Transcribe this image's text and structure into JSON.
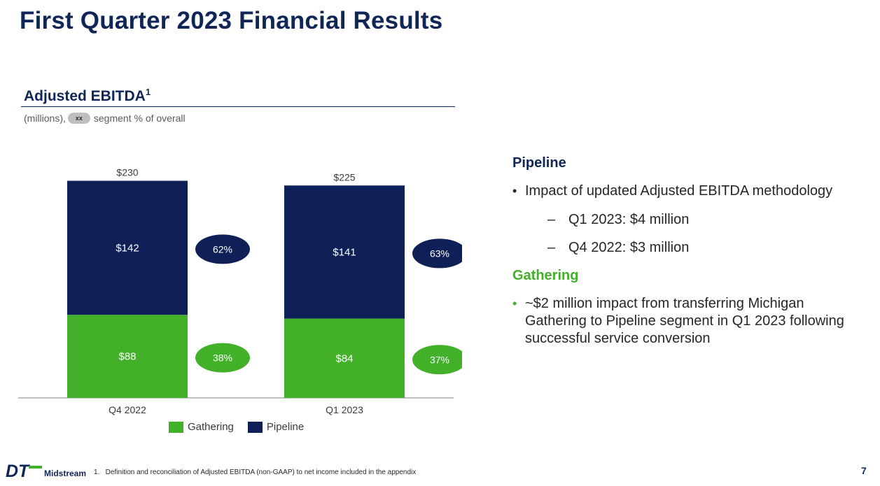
{
  "page": {
    "title": "First Quarter 2023 Financial Results",
    "page_number": "7",
    "footnote": "1.   Definition and reconciliation of Adjusted EBITDA (non-GAAP) to net income included in the appendix",
    "logo_text": "Midstream",
    "logo_letters": "DT"
  },
  "chart_header": {
    "title": "Adjusted EBITDA",
    "title_sup": "1",
    "subtitle_prefix": "(millions),",
    "subtitle_pill": "xx",
    "subtitle_suffix": "segment % of overall"
  },
  "chart_data": {
    "type": "bar",
    "stacked": true,
    "categories": [
      "Q4 2022",
      "Q1 2023"
    ],
    "series": [
      {
        "name": "Gathering",
        "values": [
          88,
          84
        ],
        "labels": [
          "$88",
          "$84"
        ],
        "share_labels": [
          "38%",
          "37%"
        ],
        "color": "#43b02a"
      },
      {
        "name": "Pipeline",
        "values": [
          142,
          141
        ],
        "labels": [
          "$142",
          "$141"
        ],
        "share_labels": [
          "62%",
          "63%"
        ],
        "color": "#0f2058"
      }
    ],
    "totals": [
      230,
      225
    ],
    "total_labels": [
      "$230",
      "$225"
    ],
    "ylim": [
      0,
      240
    ],
    "legend_position": "bottom",
    "grid": false
  },
  "legend": [
    {
      "label": "Gathering",
      "color": "#43b02a"
    },
    {
      "label": "Pipeline",
      "color": "#0f2058"
    }
  ],
  "right_panel": {
    "pipeline": {
      "heading": "Pipeline",
      "color": "#0f2657",
      "bullet": "Impact of updated Adjusted EBITDA methodology",
      "sub_items": [
        "Q1 2023: $4 million",
        "Q4 2022: $3 million"
      ]
    },
    "gathering": {
      "heading": "Gathering",
      "color": "#43b02a",
      "bullet": "~$2 million impact from transferring Michigan Gathering to Pipeline segment in Q1 2023 following successful service conversion"
    }
  },
  "colors": {
    "navy": "#0f2657",
    "green": "#43b02a"
  }
}
